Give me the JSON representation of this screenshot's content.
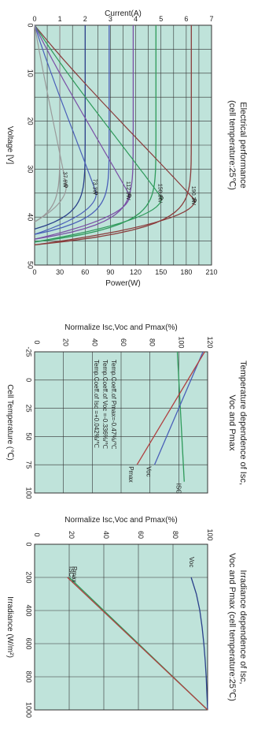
{
  "chart_data": [
    {
      "type": "line",
      "title": "Electrical performance",
      "subtitle": "(cell temperature:25℃)",
      "xlabel": "Voltage [V]",
      "xlim": [
        0,
        50
      ],
      "xticks": [
        "0",
        "10",
        "20",
        "30",
        "40",
        "50"
      ],
      "ylabel_left": "Current(A)",
      "ylim_left": [
        0,
        7
      ],
      "yticks_left": [
        "0",
        "1",
        "2",
        "3",
        "4",
        "5",
        "6",
        "7"
      ],
      "ylabel_right": "Power(W)",
      "ylim_right": [
        0,
        210
      ],
      "yticks_right": [
        "0",
        "30",
        "60",
        "90",
        "120",
        "150",
        "180",
        "210"
      ],
      "background": "#bfe3da",
      "grid": true,
      "iv_series": [
        {
          "name": "",
          "color": "#8a3b3b",
          "isc": 6.2,
          "voc": 45.8
        },
        {
          "name": "",
          "color": "#2e9a5a",
          "isc": 4.8,
          "voc": 45.2
        },
        {
          "name": "",
          "color": "#7a4fa6",
          "isc": 3.9,
          "voc": 44.6
        },
        {
          "name": "",
          "color": "#4a5fb8",
          "isc": 2.95,
          "voc": 43.6
        },
        {
          "name": "",
          "color": "#2a3f8a",
          "isc": 2.0,
          "voc": 42.5
        },
        {
          "name": "",
          "color": "#9a9a9a",
          "isc": 1.0,
          "voc": 41.0
        }
      ],
      "power_series": [
        {
          "label": "190.3W",
          "color": "#8a3b3b",
          "pmax": 190.3,
          "vmp": 36.5
        },
        {
          "label": "150.8W",
          "color": "#2e9a5a",
          "pmax": 150.8,
          "vmp": 36.0
        },
        {
          "label": "112.9W",
          "color": "#7a4fa6",
          "pmax": 112.9,
          "vmp": 35.5
        },
        {
          "label": "73.3W",
          "color": "#4a5fb8",
          "pmax": 73.3,
          "vmp": 35.0
        },
        {
          "label": "37.6W",
          "color": "#9a9a9a",
          "pmax": 37.6,
          "vmp": 33.5
        }
      ]
    },
    {
      "type": "line",
      "title": "Temperature dependence of Isc,",
      "subtitle": "Voc and Pmax",
      "xlabel": "Cell Temperature (℃)",
      "xlim": [
        -25,
        100
      ],
      "xticks": [
        "-25",
        "0",
        "25",
        "50",
        "75",
        "100"
      ],
      "ylabel": "Normalize Isc,Voc and Pmax(%)",
      "ylim": [
        0,
        120
      ],
      "yticks": [
        "0",
        "20",
        "40",
        "60",
        "80",
        "100",
        "120"
      ],
      "background": "#bfe3da",
      "grid": true,
      "annotations": [
        "Temp.Coeff.of Isc =+0.042%/℃",
        "Temp.Coeff.of Voc =-0.336%/℃",
        "Temp.Coeff.of Pmax=-0.47%/℃"
      ],
      "series": [
        {
          "name": "ISC",
          "color": "#2e9a5a",
          "x": [
            -25,
            90
          ],
          "y": [
            99,
            103.8
          ]
        },
        {
          "name": "Voc",
          "color": "#4a5fb8",
          "x": [
            -25,
            75
          ],
          "y": [
            116.8,
            83.2
          ]
        },
        {
          "name": "Pmax",
          "color": "#b04040",
          "x": [
            -25,
            75
          ],
          "y": [
            118,
            71
          ]
        }
      ]
    },
    {
      "type": "line",
      "title": "Irradiance dependence of Isc,",
      "subtitle": "Voc and Pmax (cell temperature:25℃)",
      "xlabel": "Irradiance (W/m²)",
      "xlim": [
        0,
        1000
      ],
      "xticks": [
        "0",
        "200",
        "400",
        "600",
        "800",
        "1000"
      ],
      "ylabel": "Normalize Isc,Voc and Pmax(%)",
      "ylim": [
        0,
        100
      ],
      "yticks": [
        "0",
        "20",
        "40",
        "60",
        "80",
        "100"
      ],
      "background": "#bfe3da",
      "grid": true,
      "series": [
        {
          "name": "Voc",
          "color": "#2a3f8a",
          "x": [
            200,
            300,
            400,
            500,
            600,
            700,
            800,
            900,
            1000
          ],
          "y": [
            90.5,
            93.5,
            95.5,
            96.8,
            97.8,
            98.6,
            99.2,
            99.6,
            100
          ]
        },
        {
          "name": "ISC",
          "color": "#2e9a5a",
          "x": [
            200,
            1000
          ],
          "y": [
            20,
            100
          ]
        },
        {
          "name": "Pmax",
          "color": "#b04040",
          "x": [
            200,
            1000
          ],
          "y": [
            19,
            100
          ]
        }
      ]
    }
  ]
}
